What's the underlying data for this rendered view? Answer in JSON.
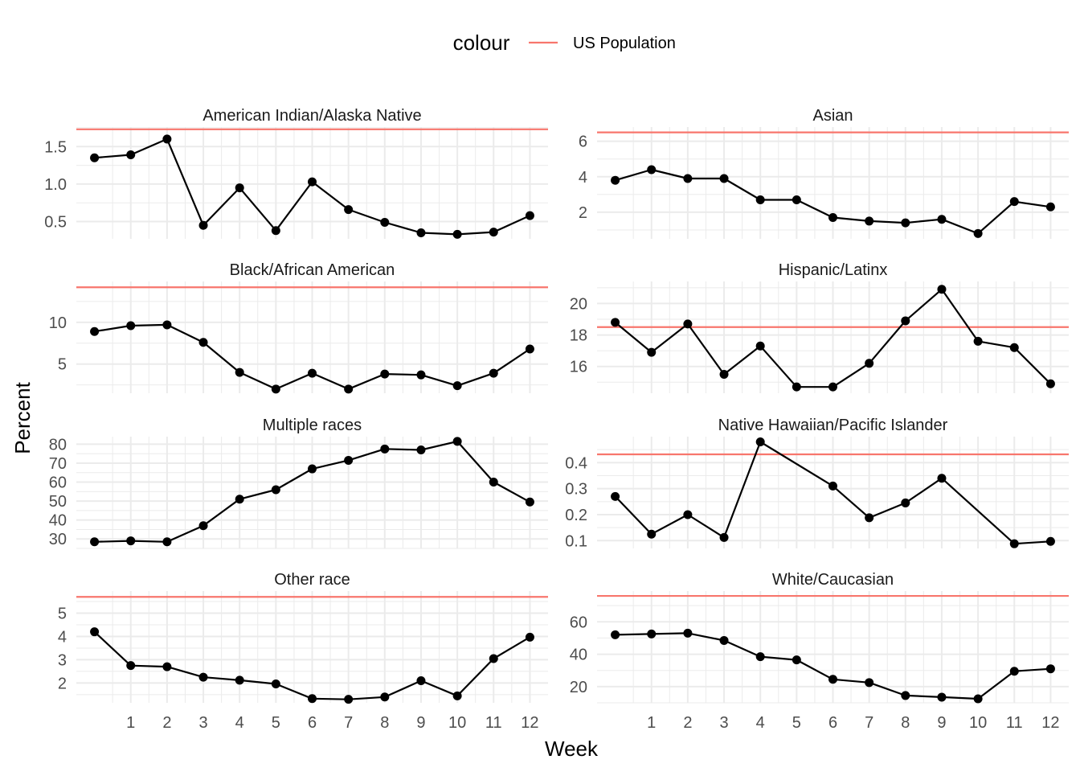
{
  "legend": {
    "title": "colour",
    "label": "US Population",
    "color": "#F8766D"
  },
  "axis_labels": {
    "x": "Week",
    "y": "Percent"
  },
  "style": {
    "line_color": "#000000",
    "reference_color": "#F8766D",
    "grid_color": "#EBEBEB",
    "text_color": "#4D4D4D"
  },
  "chart_data": [
    {
      "type": "line",
      "title": "American Indian/Alaska Native",
      "x": [
        0,
        1,
        2,
        3,
        4,
        5,
        6,
        7,
        8,
        9,
        10,
        11,
        12
      ],
      "x_ticks": [
        1,
        2,
        3,
        4,
        5,
        6,
        7,
        8,
        9,
        10,
        11,
        12
      ],
      "y": [
        1.35,
        1.39,
        1.6,
        0.45,
        0.95,
        0.38,
        1.03,
        0.66,
        0.49,
        0.35,
        0.33,
        0.36,
        0.58
      ],
      "reference": 1.73,
      "ylim": [
        0.27,
        1.76
      ],
      "y_ticks": [
        0.5,
        1.0,
        1.5
      ],
      "y_tick_labels": [
        "0.5",
        "1.0",
        "1.5"
      ]
    },
    {
      "type": "line",
      "title": "Asian",
      "x": [
        0,
        1,
        2,
        3,
        4,
        5,
        6,
        7,
        8,
        9,
        10,
        11,
        12
      ],
      "x_ticks": [
        1,
        2,
        3,
        4,
        5,
        6,
        7,
        8,
        9,
        10,
        11,
        12
      ],
      "y": [
        3.8,
        4.4,
        3.9,
        3.9,
        2.7,
        2.7,
        1.7,
        1.5,
        1.4,
        1.6,
        0.8,
        2.6,
        2.3
      ],
      "reference": 6.5,
      "ylim": [
        0.5,
        6.8
      ],
      "y_ticks": [
        2,
        4,
        6
      ],
      "y_tick_labels": [
        "2",
        "4",
        "6"
      ]
    },
    {
      "type": "line",
      "title": "Black/African American",
      "x": [
        0,
        1,
        2,
        3,
        4,
        5,
        6,
        7,
        8,
        9,
        10,
        11,
        12
      ],
      "x_ticks": [
        1,
        2,
        3,
        4,
        5,
        6,
        7,
        8,
        9,
        10,
        11,
        12
      ],
      "y": [
        8.9,
        9.6,
        9.7,
        7.6,
        4.0,
        2.0,
        3.9,
        2.0,
        3.8,
        3.7,
        2.4,
        3.9,
        6.8
      ],
      "reference": 14.2,
      "ylim": [
        1.5,
        14.9
      ],
      "y_ticks": [
        5,
        10
      ],
      "y_tick_labels": [
        "5",
        "10"
      ]
    },
    {
      "type": "line",
      "title": "Hispanic/Latinx",
      "x": [
        0,
        1,
        2,
        3,
        4,
        5,
        6,
        7,
        8,
        9,
        10,
        11,
        12
      ],
      "x_ticks": [
        1,
        2,
        3,
        4,
        5,
        6,
        7,
        8,
        9,
        10,
        11,
        12
      ],
      "y": [
        18.8,
        16.9,
        18.7,
        15.5,
        17.3,
        14.7,
        14.7,
        16.2,
        18.9,
        20.9,
        17.6,
        17.2,
        14.9
      ],
      "reference": 18.5,
      "ylim": [
        14.3,
        21.4
      ],
      "y_ticks": [
        16,
        18,
        20
      ],
      "y_tick_labels": [
        "16",
        "18",
        "20"
      ]
    },
    {
      "type": "line",
      "title": "Multiple races",
      "x": [
        0,
        1,
        2,
        3,
        4,
        5,
        6,
        7,
        8,
        9,
        10,
        11,
        12
      ],
      "x_ticks": [
        1,
        2,
        3,
        4,
        5,
        6,
        7,
        8,
        9,
        10,
        11,
        12
      ],
      "y": [
        28.5,
        29.0,
        28.5,
        37.0,
        51.0,
        56.0,
        67.0,
        71.5,
        77.5,
        77.0,
        81.5,
        60.0,
        49.5
      ],
      "ylim": [
        25.0,
        84.0
      ],
      "y_ticks": [
        30,
        40,
        50,
        60,
        70,
        80
      ],
      "y_tick_labels": [
        "30",
        "40",
        "50",
        "60",
        "70",
        "80"
      ]
    },
    {
      "type": "line",
      "title": "Native Hawaiian/Pacific Islander",
      "x": [
        0,
        1,
        2,
        3,
        4,
        6,
        7,
        8,
        9,
        11,
        12
      ],
      "x_ticks": [
        1,
        2,
        3,
        4,
        5,
        6,
        7,
        8,
        9,
        10,
        11,
        12
      ],
      "y": [
        0.27,
        0.125,
        0.2,
        0.112,
        0.48,
        0.31,
        0.188,
        0.245,
        0.34,
        0.088,
        0.097
      ],
      "reference": 0.432,
      "ylim": [
        0.07,
        0.5
      ],
      "y_ticks": [
        0.1,
        0.2,
        0.3,
        0.4
      ],
      "y_tick_labels": [
        "0.1",
        "0.2",
        "0.3",
        "0.4"
      ]
    },
    {
      "type": "line",
      "title": "Other race",
      "x": [
        0,
        1,
        2,
        3,
        4,
        5,
        6,
        7,
        8,
        9,
        10,
        11,
        12
      ],
      "x_ticks": [
        1,
        2,
        3,
        4,
        5,
        6,
        7,
        8,
        9,
        10,
        11,
        12
      ],
      "y": [
        4.2,
        2.75,
        2.7,
        2.25,
        2.12,
        1.96,
        1.33,
        1.3,
        1.4,
        2.1,
        1.45,
        3.05,
        3.97
      ],
      "reference": 5.7,
      "ylim": [
        1.15,
        5.95
      ],
      "y_ticks": [
        2,
        3,
        4,
        5
      ],
      "y_tick_labels": [
        "2",
        "3",
        "4",
        "5"
      ]
    },
    {
      "type": "line",
      "title": "White/Caucasian",
      "x": [
        0,
        1,
        2,
        3,
        4,
        5,
        6,
        7,
        8,
        9,
        10,
        11,
        12
      ],
      "x_ticks": [
        1,
        2,
        3,
        4,
        5,
        6,
        7,
        8,
        9,
        10,
        11,
        12
      ],
      "y": [
        52,
        52.5,
        53,
        48.5,
        38.5,
        36.5,
        24.5,
        22.5,
        14.5,
        13.5,
        12.5,
        29.5,
        31
      ],
      "reference": 76,
      "ylim": [
        10,
        79
      ],
      "y_ticks": [
        20,
        40,
        60
      ],
      "y_tick_labels": [
        "20",
        "40",
        "60"
      ]
    }
  ]
}
